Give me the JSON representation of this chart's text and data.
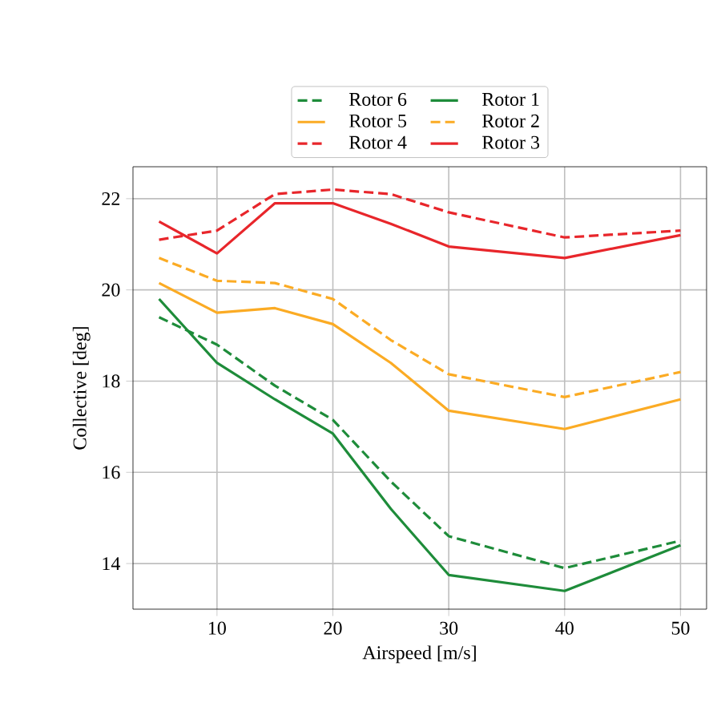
{
  "chart_data": {
    "type": "line",
    "xlabel": "Airspeed [m/s]",
    "ylabel": "Collective [deg]",
    "x": [
      5,
      10,
      15,
      20,
      25,
      30,
      40,
      50
    ],
    "xlim": [
      2.75,
      52.25
    ],
    "ylim": [
      13.0,
      22.7
    ],
    "xticks": [
      10,
      20,
      30,
      40,
      50
    ],
    "yticks": [
      14,
      16,
      18,
      20,
      22
    ],
    "grid": true,
    "legend": "top",
    "marker": "none",
    "series": [
      {
        "name": "Rotor 6",
        "color": "#1e8c3a",
        "line_style": "dashed",
        "values": [
          19.4,
          18.8,
          17.9,
          17.15,
          15.8,
          14.6,
          13.9,
          14.5
        ]
      },
      {
        "name": "Rotor 1",
        "color": "#1e8c3a",
        "line_style": "solid",
        "values": [
          19.8,
          18.4,
          17.6,
          16.85,
          15.2,
          13.75,
          13.4,
          14.4
        ]
      },
      {
        "name": "Rotor 5",
        "color": "#fbab24",
        "line_style": "solid",
        "values": [
          20.15,
          19.5,
          19.6,
          19.25,
          18.4,
          17.35,
          16.95,
          17.6
        ]
      },
      {
        "name": "Rotor 2",
        "color": "#fbab24",
        "line_style": "dashed",
        "values": [
          20.7,
          20.2,
          20.15,
          19.8,
          18.9,
          18.15,
          17.65,
          18.2
        ]
      },
      {
        "name": "Rotor 4",
        "color": "#e8262b",
        "line_style": "dashed",
        "values": [
          21.1,
          21.3,
          22.1,
          22.2,
          22.1,
          21.7,
          21.15,
          21.3
        ]
      },
      {
        "name": "Rotor 3",
        "color": "#e8262b",
        "line_style": "solid",
        "values": [
          21.5,
          20.8,
          21.9,
          21.9,
          21.45,
          20.95,
          20.7,
          21.2
        ]
      }
    ]
  }
}
